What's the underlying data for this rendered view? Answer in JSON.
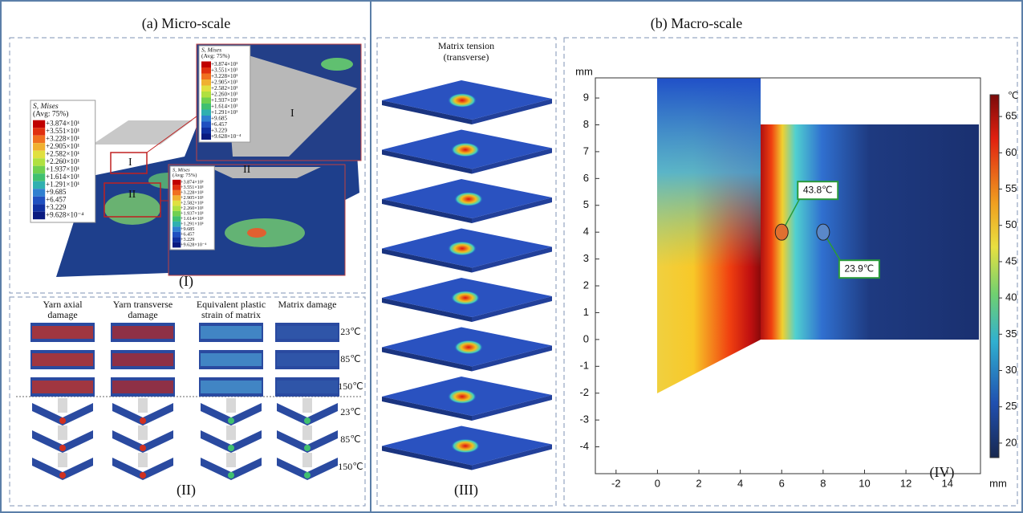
{
  "panel_a": {
    "title": "(a) Micro-scale",
    "sub_i": {
      "label": "(I)",
      "legend": {
        "title": "S, Mises",
        "avg": "(Avg: 75%)",
        "levels": [
          "+3.874×10¹",
          "+3.551×10¹",
          "+3.228×10¹",
          "+2.905×10¹",
          "+2.582×10¹",
          "+2.260×10¹",
          "+1.937×10¹",
          "+1.614×10¹",
          "+1.291×10¹",
          "+9.685",
          "+6.457",
          "+3.229",
          "+9.628×10⁻⁴"
        ]
      },
      "region_labels": [
        "I",
        "II"
      ]
    },
    "sub_ii": {
      "label": "(II)",
      "columns": [
        [
          "Yarn axial",
          "damage"
        ],
        [
          "Yarn transverse",
          "damage"
        ],
        [
          "Equivalent plastic",
          "strain of matrix"
        ],
        [
          "Matrix damage"
        ]
      ],
      "temperatures": [
        "23℃",
        "85℃",
        "150℃"
      ]
    }
  },
  "panel_b": {
    "title": "(b) Macro-scale",
    "sub_iii": {
      "label": "(III)",
      "caption": [
        "Matrix tension",
        "(transverse)"
      ]
    },
    "sub_iv": {
      "label": "(IV)",
      "x_unit": "mm",
      "y_unit": "mm",
      "xlim": [
        -3,
        15.6
      ],
      "ylim": [
        -5,
        9.75
      ],
      "xticks": [
        -2,
        0,
        2,
        4,
        6,
        8,
        10,
        12,
        14
      ],
      "yticks": [
        -4,
        -3,
        -2,
        -1,
        0,
        1,
        2,
        3,
        4,
        5,
        6,
        7,
        8,
        9
      ],
      "colorbar": {
        "unit": "℃",
        "lim": [
          18,
          68
        ],
        "ticks": [
          20,
          25,
          30,
          35,
          40,
          45,
          50,
          55,
          60,
          65
        ]
      },
      "annotations": [
        {
          "label": "43.8℃",
          "x": 6,
          "y": 4
        },
        {
          "label": "23.9℃",
          "x": 8,
          "y": 4
        }
      ]
    }
  }
}
